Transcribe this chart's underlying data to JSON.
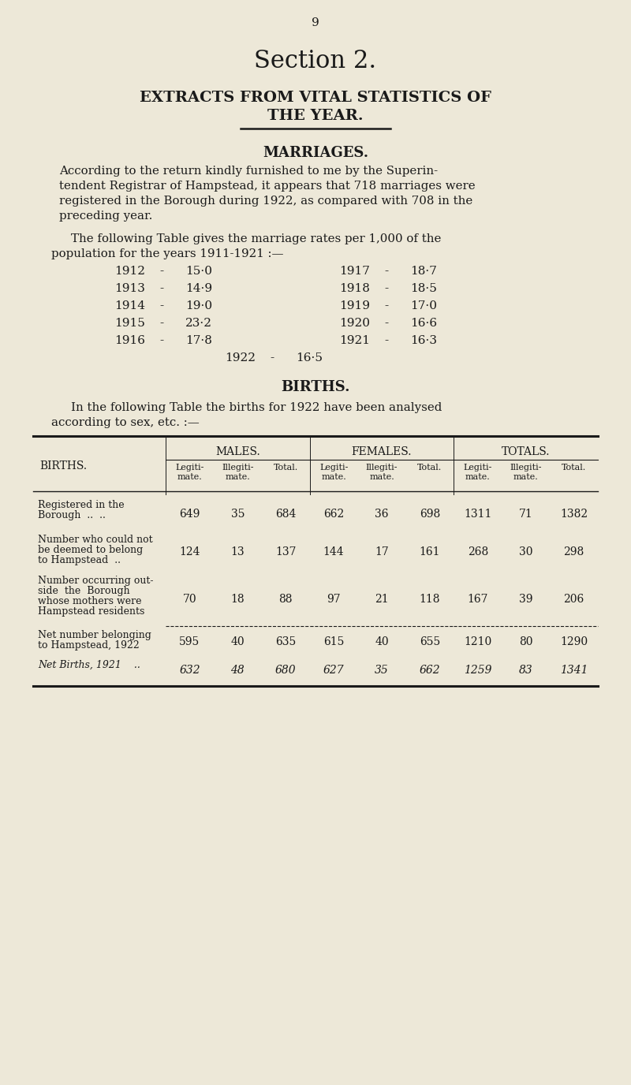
{
  "page_number": "9",
  "section_title": "Section 2.",
  "heading_line1": "EXTRACTS FROM VITAL STATISTICS OF",
  "heading_line2": "THE YEAR.",
  "marriages_heading": "MARRIAGES.",
  "marriages_para1": [
    "According to the return kindly furnished to me by the Superin-",
    "tendent Registrar of Hampstead, it appears that 718 marriages were",
    "registered in the Borough during 1922, as compared with 708 in the",
    "preceding year."
  ],
  "marriages_para2": [
    "The following Table gives the marriage rates per 1,000 of the",
    "population for the years 1911-1921 :—"
  ],
  "marriage_rates": [
    [
      "1912",
      "15·0",
      "1917",
      "18·7"
    ],
    [
      "1913",
      "14·9",
      "1918",
      "18·5"
    ],
    [
      "1914",
      "19·0",
      "1919",
      "17·0"
    ],
    [
      "1915",
      "23·2",
      "1920",
      "16·6"
    ],
    [
      "1916",
      "17·8",
      "1921",
      "16·3"
    ]
  ],
  "marriage_1922_year": "1922",
  "marriage_1922_rate": "16·5",
  "births_heading": "BIRTHS.",
  "births_para": [
    "In the following Table the births for 1922 have been analysed",
    "according to sex, etc. :—"
  ],
  "table_col_groups": [
    "MALES.",
    "FEMALES.",
    "TOTALS."
  ],
  "table_sub_headers": [
    "Legiti-\nmate.",
    "Illegiti-\nmate.",
    "Total.",
    "Legiti-\nmate.",
    "Illegiti-\nmate.",
    "Total.",
    "Legiti-\nmate.",
    "Illegiti-\nmate.",
    "Total."
  ],
  "table_row_labels": [
    [
      "Registered in the",
      "Borough  ..  .."
    ],
    [
      "Number who could not",
      "be deemed to belong",
      "to Hampstead  .."
    ],
    [
      "Number occurring out-",
      "side  the  Borough",
      "whose mothers were",
      "Hampstead residents"
    ],
    [
      "Net number belonging",
      "to Hampstead, 1922"
    ],
    [
      "Net Births, 1921    .."
    ]
  ],
  "table_data": [
    [
      649,
      35,
      684,
      662,
      36,
      698,
      1311,
      71,
      1382
    ],
    [
      124,
      13,
      137,
      144,
      17,
      161,
      268,
      30,
      298
    ],
    [
      70,
      18,
      88,
      97,
      21,
      118,
      167,
      39,
      206
    ],
    [
      595,
      40,
      635,
      615,
      40,
      655,
      1210,
      80,
      1290
    ],
    [
      632,
      48,
      680,
      627,
      35,
      662,
      1259,
      83,
      1341
    ]
  ],
  "row_italic": [
    false,
    false,
    false,
    false,
    true
  ],
  "bg_color": "#ede8d8",
  "text_color": "#1a1a1a"
}
